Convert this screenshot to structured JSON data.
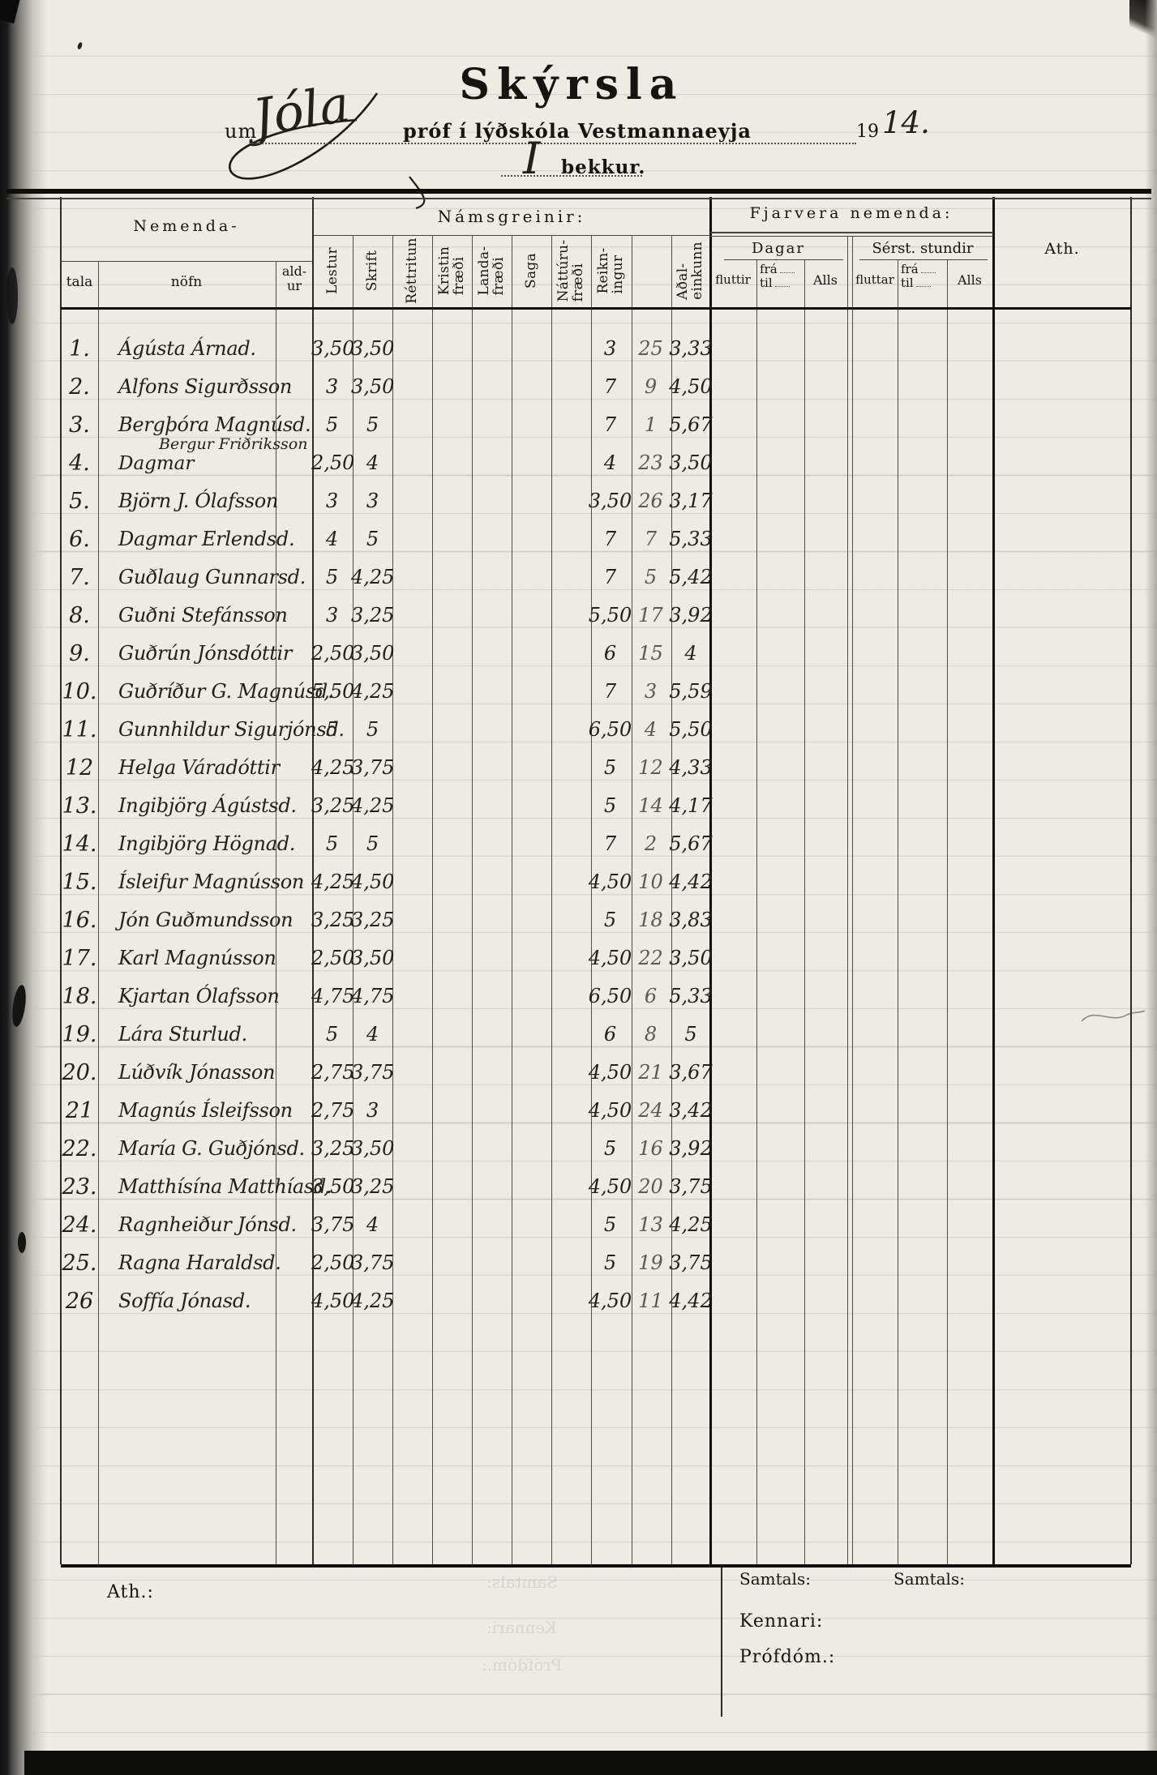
{
  "page": {
    "title": "Skýrsla",
    "subtitle": {
      "um": "um",
      "exam_name": "Jóla",
      "rest": "próf í lýðskóla Vestmannaeyja",
      "year_printed": "19",
      "year_written": "14.",
      "class_written": "I",
      "class_label": "bekkur."
    }
  },
  "table": {
    "nemenda": {
      "group": "Nemenda-",
      "tala": "tala",
      "nofn": "nöfn",
      "aldur": "ald-\nur"
    },
    "namsgreinir": {
      "group": "Námsgreinir:",
      "subjects": [
        "Lestur",
        "Skrift",
        "Réttritun",
        "Kristin\nfræði",
        "Landa-\nfræði",
        "Saga",
        "Náttúru-\nfræði",
        "Reikn-\ningur",
        "",
        "Aðal-\neinkunn"
      ]
    },
    "fjarvera": {
      "group": "Fjarvera nemenda:",
      "dagar": "Dagar",
      "serst": "Sérst. stundir",
      "fluttir": "fluttir",
      "fluttar": "fluttar",
      "fra": "frá",
      "til": "til",
      "alls": "Alls"
    },
    "ath": "Ath."
  },
  "rows": [
    {
      "num": "1.",
      "name": "Ágústa Árnad.",
      "lestur": "3,50",
      "skrift": "3,50",
      "reikningur": "3",
      "rod": "25",
      "adaleinkunn": "3,33"
    },
    {
      "num": "2.",
      "name": "Alfons Sigurðsson",
      "lestur": "3",
      "skrift": "3,50",
      "reikningur": "7",
      "rod": "9",
      "adaleinkunn": "4,50"
    },
    {
      "num": "3.",
      "name": "Bergþóra Magnúsd.",
      "lestur": "5",
      "skrift": "5",
      "reikningur": "7",
      "rod": "1",
      "adaleinkunn": "5,67"
    },
    {
      "num": "4.",
      "name": "Bergur Friðriksson",
      "subname": "Dagmar",
      "lestur": "2,50",
      "skrift": "4",
      "reikningur": "4",
      "rod": "23",
      "adaleinkunn": "3,50"
    },
    {
      "num": "5.",
      "name": "Björn J. Ólafsson",
      "lestur": "3",
      "skrift": "3",
      "reikningur": "3,50",
      "rod": "26",
      "adaleinkunn": "3,17"
    },
    {
      "num": "6.",
      "name": "Dagmar Erlendsd.",
      "lestur": "4",
      "skrift": "5",
      "reikningur": "7",
      "rod": "7",
      "adaleinkunn": "5,33"
    },
    {
      "num": "7.",
      "name": "Guðlaug Gunnarsd.",
      "lestur": "5",
      "skrift": "4,25",
      "reikningur": "7",
      "rod": "5",
      "adaleinkunn": "5,42"
    },
    {
      "num": "8.",
      "name": "Guðni Stefánsson",
      "lestur": "3",
      "skrift": "3,25",
      "reikningur": "5,50",
      "rod": "17",
      "adaleinkunn": "3,92"
    },
    {
      "num": "9.",
      "name": "Guðrún Jónsdóttir",
      "lestur": "2,50",
      "skrift": "3,50",
      "reikningur": "6",
      "rod": "15",
      "adaleinkunn": "4"
    },
    {
      "num": "10.",
      "name": "Guðríður G. Magnúsd.",
      "lestur": "5,50",
      "skrift": "4,25",
      "reikningur": "7",
      "rod": "3",
      "adaleinkunn": "5,59"
    },
    {
      "num": "11.",
      "name": "Gunnhildur Sigurjónsd.",
      "lestur": "5",
      "skrift": "5",
      "reikningur": "6,50",
      "rod": "4",
      "adaleinkunn": "5,50"
    },
    {
      "num": "12",
      "name": "Helga Váradóttir",
      "lestur": "4,25",
      "skrift": "3,75",
      "reikningur": "5",
      "rod": "12",
      "adaleinkunn": "4,33"
    },
    {
      "num": "13.",
      "name": "Ingibjörg Ágústsd.",
      "lestur": "3,25",
      "skrift": "4,25",
      "reikningur": "5",
      "rod": "14",
      "adaleinkunn": "4,17"
    },
    {
      "num": "14.",
      "name": "Ingibjörg Högnad.",
      "lestur": "5",
      "skrift": "5",
      "reikningur": "7",
      "rod": "2",
      "adaleinkunn": "5,67"
    },
    {
      "num": "15.",
      "name": "Ísleifur Magnússon",
      "lestur": "4,25",
      "skrift": "4,50",
      "reikningur": "4,50",
      "rod": "10",
      "adaleinkunn": "4,42"
    },
    {
      "num": "16.",
      "name": "Jón Guðmundsson",
      "lestur": "3,25",
      "skrift": "3,25",
      "reikningur": "5",
      "rod": "18",
      "adaleinkunn": "3,83"
    },
    {
      "num": "17.",
      "name": "Karl Magnússon",
      "lestur": "2,50",
      "skrift": "3,50",
      "reikningur": "4,50",
      "rod": "22",
      "adaleinkunn": "3,50"
    },
    {
      "num": "18.",
      "name": "Kjartan Ólafsson",
      "lestur": "4,75",
      "skrift": "4,75",
      "reikningur": "6,50",
      "rod": "6",
      "adaleinkunn": "5,33"
    },
    {
      "num": "19.",
      "name": "Lára Sturlud.",
      "lestur": "5",
      "skrift": "4",
      "reikningur": "6",
      "rod": "8",
      "adaleinkunn": "5"
    },
    {
      "num": "20.",
      "name": "Lúðvík Jónasson",
      "lestur": "2,75",
      "skrift": "3,75",
      "reikningur": "4,50",
      "rod": "21",
      "adaleinkunn": "3,67"
    },
    {
      "num": "21",
      "name": "Magnús Ísleifsson",
      "lestur": "2,75",
      "skrift": "3",
      "reikningur": "4,50",
      "rod": "24",
      "adaleinkunn": "3,42"
    },
    {
      "num": "22.",
      "name": "María G. Guðjónsd.",
      "lestur": "3,25",
      "skrift": "3,50",
      "reikningur": "5",
      "rod": "16",
      "adaleinkunn": "3,92"
    },
    {
      "num": "23.",
      "name": "Matthísína Matthíasd.",
      "lestur": "3,50",
      "skrift": "3,25",
      "reikningur": "4,50",
      "rod": "20",
      "adaleinkunn": "3,75"
    },
    {
      "num": "24.",
      "name": "Ragnheiður Jónsd.",
      "lestur": "3,75",
      "skrift": "4",
      "reikningur": "5",
      "rod": "13",
      "adaleinkunn": "4,25"
    },
    {
      "num": "25.",
      "name": "Ragna Haraldsd.",
      "lestur": "2,50",
      "skrift": "3,75",
      "reikningur": "5",
      "rod": "19",
      "adaleinkunn": "3,75"
    },
    {
      "num": "26",
      "name": "Soffía Jónasd.",
      "lestur": "4,50",
      "skrift": "4,25",
      "reikningur": "4,50",
      "rod": "11",
      "adaleinkunn": "4,42"
    }
  ],
  "footer": {
    "ath": "Ath.:",
    "samtals1": "Samtals:",
    "samtals2": "Samtals:",
    "kennari": "Kennari:",
    "profdom": "Prófdóm.:"
  },
  "colors": {
    "ink": "#22201c",
    "pencil": "#5d5852",
    "paper": "#ecebe5",
    "rule_thick": "#0f0e0d"
  }
}
